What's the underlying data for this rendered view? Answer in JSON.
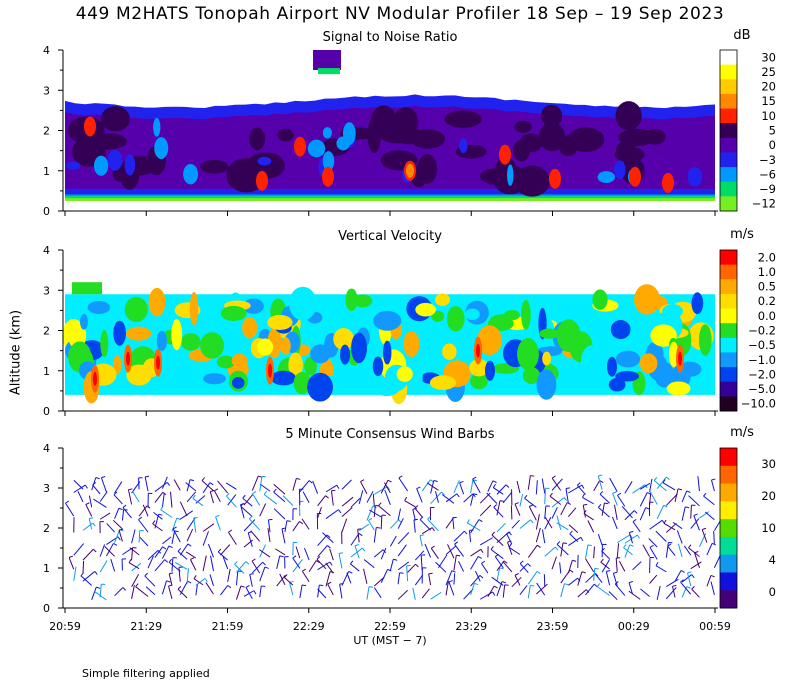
{
  "title": "449 M2HATS Tonopah Airport NV Modular Profiler 18 Sep – 19 Sep 2023",
  "ylabel": "Altitude (km)",
  "xlabel": "UT  (MST − 7)",
  "footnote": "Simple filtering applied",
  "chart_data": [
    {
      "type": "heatmap",
      "title": "Signal to Noise Ratio",
      "unit": "dB",
      "ylim": [
        0,
        4
      ],
      "yticks": [
        "0",
        "1",
        "2",
        "3",
        "4"
      ],
      "xticks": [
        "20:59",
        "21:29",
        "21:59",
        "22:29",
        "22:59",
        "23:29",
        "23:59",
        "00:29",
        "00:59"
      ],
      "colorbar": {
        "labels": [
          "30",
          "25",
          "20",
          "15",
          "10",
          "5",
          "0",
          "−3",
          "−6",
          "−9",
          "−12"
        ],
        "colors": [
          "#ffffff",
          "#ffff00",
          "#ffcc00",
          "#ff8800",
          "#ff2200",
          "#330055",
          "#5500aa",
          "#2222ee",
          "#0099ff",
          "#00dd66",
          "#77ee22"
        ]
      },
      "data_top_km": 2.8,
      "data_bottom_km": 0.3,
      "dominant_value_db": 0
    },
    {
      "type": "heatmap",
      "title": "Vertical Velocity",
      "unit": "m/s",
      "ylim": [
        0,
        4
      ],
      "yticks": [
        "0",
        "1",
        "2",
        "3",
        "4"
      ],
      "xticks": [
        "20:59",
        "21:29",
        "21:59",
        "22:29",
        "22:59",
        "23:29",
        "23:59",
        "00:29",
        "00:59"
      ],
      "colorbar": {
        "labels": [
          "2.0",
          "1.0",
          "0.5",
          "0.2",
          "0.0",
          "−0.2",
          "−0.5",
          "−1.0",
          "−2.0",
          "−5.0",
          "−10.0"
        ],
        "colors": [
          "#ff0000",
          "#ff6600",
          "#ffaa00",
          "#ffdd00",
          "#ffff00",
          "#22dd22",
          "#00eeff",
          "#1199ff",
          "#0044ee",
          "#330099",
          "#220022"
        ]
      },
      "data_top_km": 2.9,
      "data_bottom_km": 0.4,
      "dominant_value_ms": -0.3
    },
    {
      "type": "scatter",
      "title": "5 Minute Consensus Wind Barbs",
      "unit": "m/s",
      "ylim": [
        0,
        4
      ],
      "yticks": [
        "0",
        "1",
        "2",
        "3",
        "4"
      ],
      "xticks": [
        "20:59",
        "21:29",
        "21:59",
        "22:29",
        "22:59",
        "23:29",
        "23:59",
        "00:29",
        "00:59"
      ],
      "colorbar": {
        "labels": [
          "30",
          "20",
          "10",
          "4",
          "0"
        ],
        "colors": [
          "#ff0000",
          "#ff6600",
          "#ffaa00",
          "#ffee00",
          "#55dd00",
          "#00dd99",
          "#1199ee",
          "#1111dd",
          "#440077"
        ]
      },
      "barb_top_km": 3.0,
      "barb_bottom_km": 0.2
    }
  ]
}
